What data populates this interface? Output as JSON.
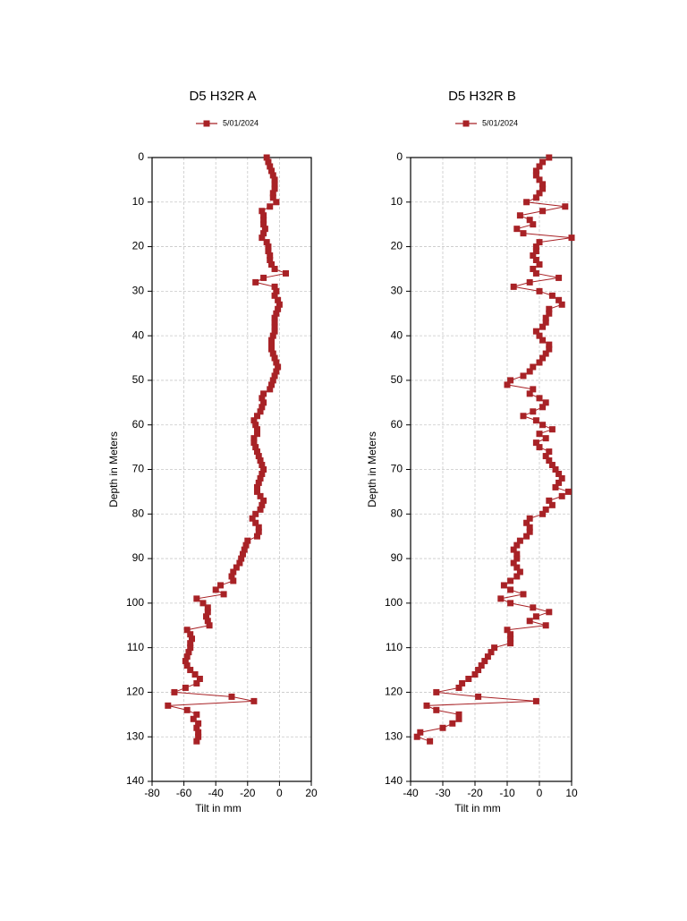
{
  "chart_data": [
    {
      "type": "line",
      "title": "D5 H32R A",
      "x_label": "Tilt in mm",
      "y_label": "Depth in Meters",
      "xlim": [
        -80,
        20
      ],
      "xticks": [
        -80,
        -60,
        -40,
        -20,
        0,
        20
      ],
      "ylim": [
        0,
        140
      ],
      "yticks": [
        0,
        10,
        20,
        30,
        40,
        50,
        60,
        70,
        80,
        90,
        100,
        110,
        120,
        130,
        140
      ],
      "y_inverted": true,
      "grid": true,
      "series": [
        {
          "name": "5/01/2024",
          "color": "#a82226",
          "x": [
            -8,
            -7,
            -6,
            -5,
            -4,
            -3,
            -3,
            -3,
            -4,
            -4,
            -2,
            -6,
            -11,
            -10,
            -10,
            -10,
            -9,
            -10,
            -11,
            -8,
            -7,
            -7,
            -6,
            -6,
            -5,
            -3,
            4,
            -10,
            -15,
            -3,
            -2,
            -3,
            -1,
            0,
            -1,
            -2,
            -3,
            -3,
            -3,
            -3,
            -4,
            -5,
            -5,
            -5,
            -4,
            -3,
            -2,
            -1,
            -2,
            -3,
            -4,
            -5,
            -6,
            -10,
            -11,
            -10,
            -11,
            -12,
            -14,
            -16,
            -15,
            -14,
            -14,
            -16,
            -16,
            -15,
            -14,
            -13,
            -12,
            -11,
            -10,
            -11,
            -12,
            -13,
            -14,
            -14,
            -12,
            -10,
            -11,
            -12,
            -15,
            -17,
            -15,
            -13,
            -13,
            -14,
            -20,
            -21,
            -22,
            -23,
            -24,
            -25,
            -27,
            -29,
            -30,
            -29,
            -37,
            -40,
            -35,
            -52,
            -48,
            -45,
            -45,
            -46,
            -45,
            -44,
            -58,
            -56,
            -55,
            -56,
            -56,
            -57,
            -58,
            -59,
            -58,
            -56,
            -53,
            -50,
            -52,
            -59,
            -66,
            -30,
            -16,
            -70,
            -58,
            -52,
            -54,
            -51,
            -52,
            -51,
            -51,
            -52
          ],
          "y": [
            0,
            1,
            2,
            3,
            4,
            5,
            6,
            7,
            8,
            9,
            10,
            11,
            12,
            13,
            14,
            15,
            16,
            17,
            18,
            19,
            20,
            21,
            22,
            23,
            24,
            25,
            26,
            27,
            28,
            29,
            30,
            31,
            32,
            33,
            34,
            35,
            36,
            37,
            38,
            39,
            40,
            41,
            42,
            43,
            44,
            45,
            46,
            47,
            48,
            49,
            50,
            51,
            52,
            53,
            54,
            55,
            56,
            57,
            58,
            59,
            60,
            61,
            62,
            63,
            64,
            65,
            66,
            67,
            68,
            69,
            70,
            71,
            72,
            73,
            74,
            75,
            76,
            77,
            78,
            79,
            80,
            81,
            82,
            83,
            84,
            85,
            86,
            87,
            88,
            89,
            90,
            91,
            92,
            93,
            94,
            95,
            96,
            97,
            98,
            99,
            100,
            101,
            102,
            103,
            104,
            105,
            106,
            107,
            108,
            109,
            110,
            111,
            112,
            113,
            114,
            115,
            116,
            117,
            118,
            119,
            120,
            121,
            122,
            123,
            124,
            125,
            126,
            127,
            128,
            129,
            130,
            131
          ]
        }
      ]
    },
    {
      "type": "line",
      "title": "D5 H32R B",
      "x_label": "Tilt in mm",
      "y_label": "Depth in Meters",
      "xlim": [
        -40,
        10
      ],
      "xticks": [
        -40,
        -30,
        -20,
        -10,
        0,
        10
      ],
      "ylim": [
        0,
        140
      ],
      "yticks": [
        0,
        10,
        20,
        30,
        40,
        50,
        60,
        70,
        80,
        90,
        100,
        110,
        120,
        130,
        140
      ],
      "y_inverted": true,
      "grid": true,
      "series": [
        {
          "name": "5/01/2024",
          "color": "#a82226",
          "x": [
            3,
            1,
            0,
            -1,
            -1,
            0,
            1,
            1,
            0,
            -1,
            -4,
            8,
            1,
            -6,
            -3,
            -2,
            -7,
            -5,
            10,
            0,
            -1,
            -1,
            -2,
            -1,
            0,
            -2,
            -1,
            6,
            -3,
            -8,
            0,
            4,
            6,
            7,
            3,
            3,
            2,
            2,
            1,
            -1,
            0,
            1,
            3,
            3,
            2,
            1,
            0,
            -2,
            -3,
            -5,
            -9,
            -10,
            -2,
            -3,
            0,
            2,
            1,
            -2,
            -5,
            -1,
            1,
            4,
            0,
            2,
            -1,
            0,
            3,
            2,
            3,
            4,
            5,
            6,
            7,
            6,
            5,
            9,
            7,
            3,
            4,
            2,
            1,
            -3,
            -4,
            -3,
            -3,
            -4,
            -6,
            -7,
            -8,
            -7,
            -7,
            -8,
            -7,
            -6,
            -7,
            -9,
            -11,
            -9,
            -5,
            -12,
            -9,
            -2,
            3,
            -1,
            -3,
            2,
            -10,
            -9,
            -9,
            -9,
            -14,
            -15,
            -16,
            -17,
            -18,
            -19,
            -20,
            -22,
            -24,
            -25,
            -32,
            -19,
            -1,
            -35,
            -32,
            -25,
            -25,
            -27,
            -30,
            -37,
            -38,
            -34
          ],
          "y": [
            0,
            1,
            2,
            3,
            4,
            5,
            6,
            7,
            8,
            9,
            10,
            11,
            12,
            13,
            14,
            15,
            16,
            17,
            18,
            19,
            20,
            21,
            22,
            23,
            24,
            25,
            26,
            27,
            28,
            29,
            30,
            31,
            32,
            33,
            34,
            35,
            36,
            37,
            38,
            39,
            40,
            41,
            42,
            43,
            44,
            45,
            46,
            47,
            48,
            49,
            50,
            51,
            52,
            53,
            54,
            55,
            56,
            57,
            58,
            59,
            60,
            61,
            62,
            63,
            64,
            65,
            66,
            67,
            68,
            69,
            70,
            71,
            72,
            73,
            74,
            75,
            76,
            77,
            78,
            79,
            80,
            81,
            82,
            83,
            84,
            85,
            86,
            87,
            88,
            89,
            90,
            91,
            92,
            93,
            94,
            95,
            96,
            97,
            98,
            99,
            100,
            101,
            102,
            103,
            104,
            105,
            106,
            107,
            108,
            109,
            110,
            111,
            112,
            113,
            114,
            115,
            116,
            117,
            118,
            119,
            120,
            121,
            122,
            123,
            124,
            125,
            126,
            127,
            128,
            129,
            130,
            131
          ]
        }
      ]
    }
  ]
}
